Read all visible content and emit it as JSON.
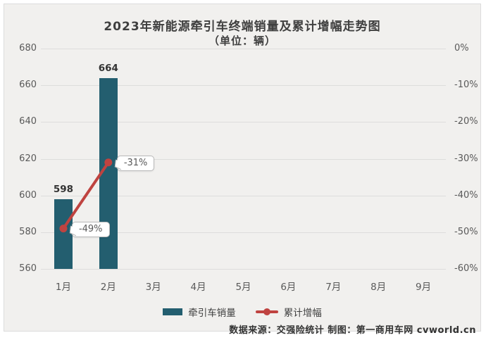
{
  "chart_data": {
    "type": "bar",
    "subtype": "combo-bar-line",
    "title": "2023年新能源牵引车终端销量及累计增幅走势图",
    "subtitle": "（单位：辆）",
    "categories": [
      "1月",
      "2月",
      "3月",
      "4月",
      "5月",
      "6月",
      "7月",
      "8月",
      "9月"
    ],
    "series": [
      {
        "name": "牵引车销量",
        "type": "bar",
        "color": "#235e6f",
        "values": [
          598,
          664,
          null,
          null,
          null,
          null,
          null,
          null,
          null
        ],
        "data_labels": [
          "598",
          "664"
        ]
      },
      {
        "name": "累计增幅",
        "type": "line",
        "color": "#bf4340",
        "values": [
          -49,
          -31,
          null,
          null,
          null,
          null,
          null,
          null,
          null
        ],
        "data_labels": [
          "-49%",
          "-31%"
        ]
      }
    ],
    "left_axis": {
      "min": 560,
      "max": 680,
      "tick_step": 20,
      "ticks": [
        "680",
        "660",
        "640",
        "620",
        "600",
        "580",
        "560"
      ]
    },
    "right_axis": {
      "min": -60,
      "max": 0,
      "tick_step": 10,
      "ticks": [
        "0%",
        "-10%",
        "-20%",
        "-30%",
        "-40%",
        "-50%",
        "-60%"
      ]
    },
    "grid": true,
    "legend_position": "bottom",
    "background_color": "#f1f0ee",
    "gridline_color": "#dddddc"
  },
  "footer": {
    "source": "数据来源：交强险统计 制图：第一商用车网 cvworld.cn"
  }
}
